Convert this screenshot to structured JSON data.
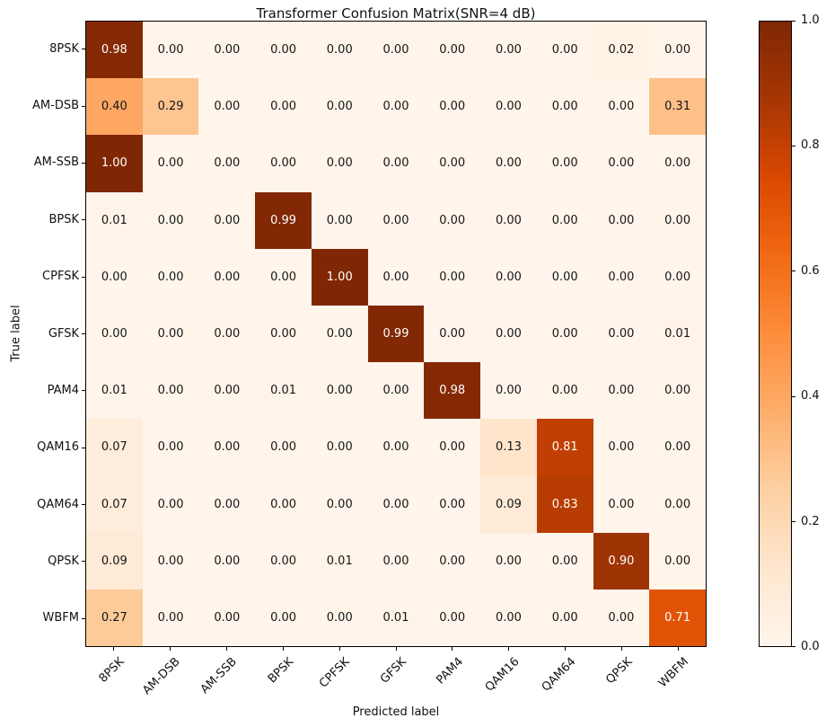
{
  "chart_data": {
    "type": "heatmap",
    "title": "Transformer Confusion Matrix(SNR=4 dB)",
    "xlabel": "Predicted label",
    "ylabel": "True label",
    "x_categories": [
      "8PSK",
      "AM-DSB",
      "AM-SSB",
      "BPSK",
      "CPFSK",
      "GFSK",
      "PAM4",
      "QAM16",
      "QAM64",
      "QPSK",
      "WBFM"
    ],
    "y_categories": [
      "8PSK",
      "AM-DSB",
      "AM-SSB",
      "BPSK",
      "CPFSK",
      "GFSK",
      "PAM4",
      "QAM16",
      "QAM64",
      "QPSK",
      "WBFM"
    ],
    "matrix": [
      [
        0.98,
        0.0,
        0.0,
        0.0,
        0.0,
        0.0,
        0.0,
        0.0,
        0.0,
        0.02,
        0.0
      ],
      [
        0.4,
        0.29,
        0.0,
        0.0,
        0.0,
        0.0,
        0.0,
        0.0,
        0.0,
        0.0,
        0.31
      ],
      [
        1.0,
        0.0,
        0.0,
        0.0,
        0.0,
        0.0,
        0.0,
        0.0,
        0.0,
        0.0,
        0.0
      ],
      [
        0.01,
        0.0,
        0.0,
        0.99,
        0.0,
        0.0,
        0.0,
        0.0,
        0.0,
        0.0,
        0.0
      ],
      [
        0.0,
        0.0,
        0.0,
        0.0,
        1.0,
        0.0,
        0.0,
        0.0,
        0.0,
        0.0,
        0.0
      ],
      [
        0.0,
        0.0,
        0.0,
        0.0,
        0.0,
        0.99,
        0.0,
        0.0,
        0.0,
        0.0,
        0.01
      ],
      [
        0.01,
        0.0,
        0.0,
        0.01,
        0.0,
        0.0,
        0.98,
        0.0,
        0.0,
        0.0,
        0.0
      ],
      [
        0.07,
        0.0,
        0.0,
        0.0,
        0.0,
        0.0,
        0.0,
        0.13,
        0.81,
        0.0,
        0.0
      ],
      [
        0.07,
        0.0,
        0.0,
        0.0,
        0.0,
        0.0,
        0.0,
        0.09,
        0.83,
        0.0,
        0.0
      ],
      [
        0.09,
        0.0,
        0.0,
        0.0,
        0.01,
        0.0,
        0.0,
        0.0,
        0.0,
        0.9,
        0.0
      ],
      [
        0.27,
        0.0,
        0.0,
        0.0,
        0.0,
        0.01,
        0.0,
        0.0,
        0.0,
        0.0,
        0.71
      ]
    ],
    "value_range": [
      0.0,
      1.0
    ],
    "value_format_decimals": 2,
    "colormap": "Oranges",
    "colormap_stops": [
      "#fff5eb",
      "#fee6ce",
      "#fdd0a2",
      "#fdae6b",
      "#fd8d3c",
      "#f16913",
      "#d94801",
      "#a63603",
      "#7f2704"
    ],
    "cell_text_dark_color": "#151515",
    "cell_text_light_color": "#ffffff",
    "cell_text_threshold": 0.5,
    "colorbar_ticks": [
      0.0,
      0.2,
      0.4,
      0.6,
      0.8,
      1.0
    ],
    "colorbar_tick_labels": [
      "0.0",
      "0.2",
      "0.4",
      "0.6",
      "0.8",
      "1.0"
    ],
    "legend_position": "right-colorbar",
    "grid": false
  }
}
